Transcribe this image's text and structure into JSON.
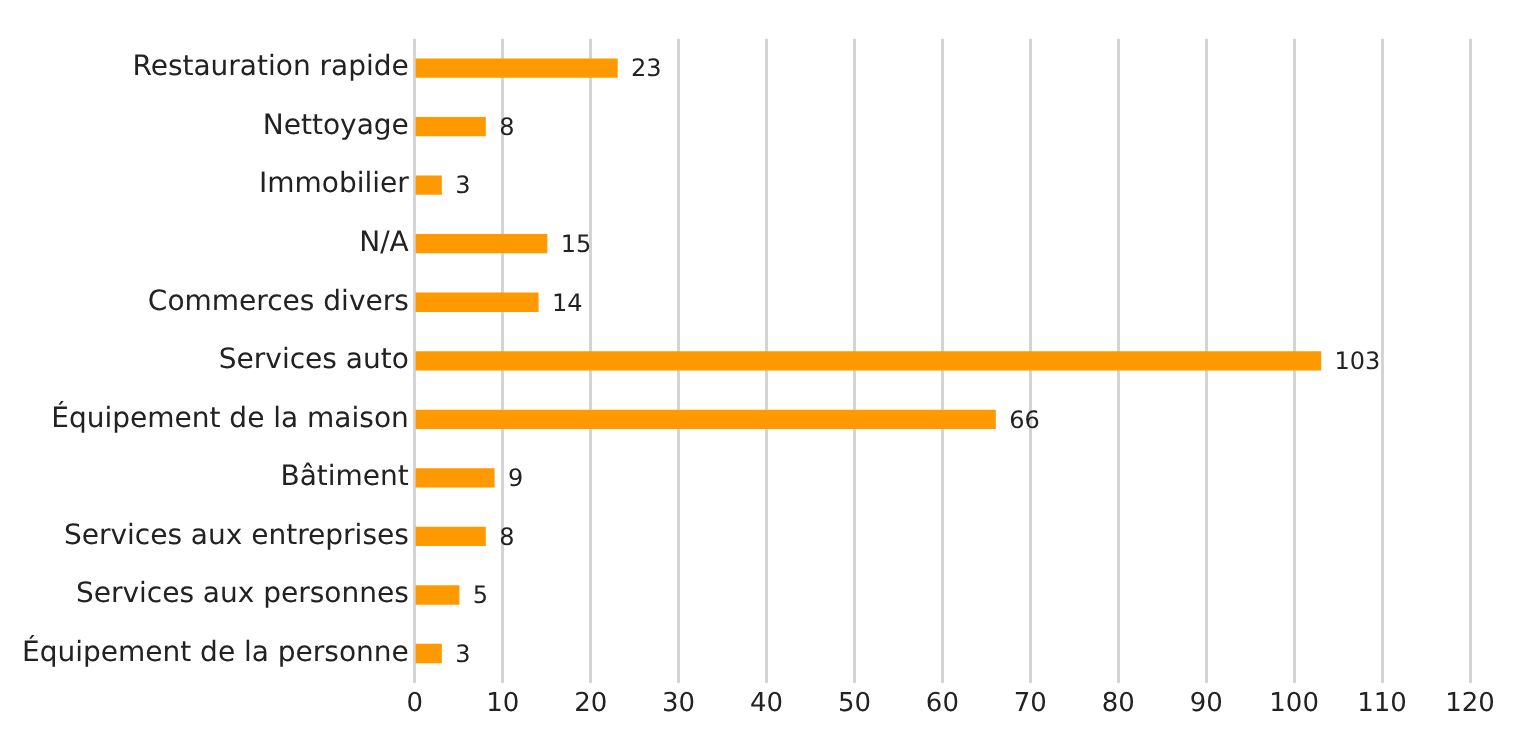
{
  "chart_data": {
    "type": "bar",
    "orientation": "horizontal",
    "categories": [
      "Restauration rapide",
      "Nettoyage",
      "Immobilier",
      "N/A",
      "Commerces divers",
      "Services auto",
      "Équipement de la maison",
      "Bâtiment",
      "Services aux entreprises",
      "Services aux personnes",
      "Équipement de la personne"
    ],
    "values": [
      23,
      8,
      3,
      15,
      14,
      103,
      66,
      9,
      8,
      5,
      3
    ],
    "color": "#ff9900",
    "xlim": [
      0,
      120
    ],
    "xticks": [
      0,
      10,
      20,
      30,
      40,
      50,
      60,
      70,
      80,
      90,
      100,
      110,
      120
    ],
    "grid": "x",
    "legend": false,
    "data_labels": true
  }
}
